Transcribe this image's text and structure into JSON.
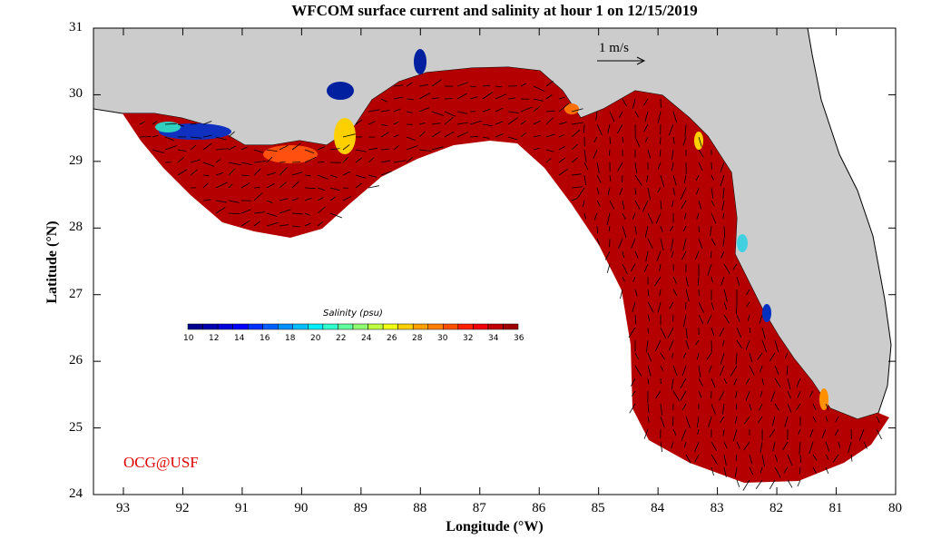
{
  "title": "WFCOM surface current and salinity at hour 1 on 12/15/2019",
  "xlabel": "Longitude (°W)",
  "ylabel": "Latitude (°N)",
  "lon_ticks": [
    "93",
    "92",
    "91",
    "90",
    "89",
    "88",
    "87",
    "86",
    "85",
    "84",
    "83",
    "82",
    "81",
    "80"
  ],
  "lat_ticks": [
    "31",
    "30",
    "29",
    "28",
    "27",
    "26",
    "25",
    "24"
  ],
  "extent": {
    "lon": [
      -93.5,
      -80
    ],
    "lat": [
      24,
      31
    ]
  },
  "scale_vector": "1 m/s",
  "credit": "OCG@USF",
  "colorbar": {
    "title": "Salinity (psu)",
    "labels": [
      "10",
      "12",
      "14",
      "16",
      "18",
      "20",
      "22",
      "24",
      "26",
      "28",
      "30",
      "32",
      "34",
      "36"
    ],
    "range": [
      10,
      36
    ]
  },
  "colors": {
    "land": "#cccccc",
    "ocean": "#ffffff",
    "dominant_salinity": "#b40000",
    "credit": "#e00000"
  }
}
